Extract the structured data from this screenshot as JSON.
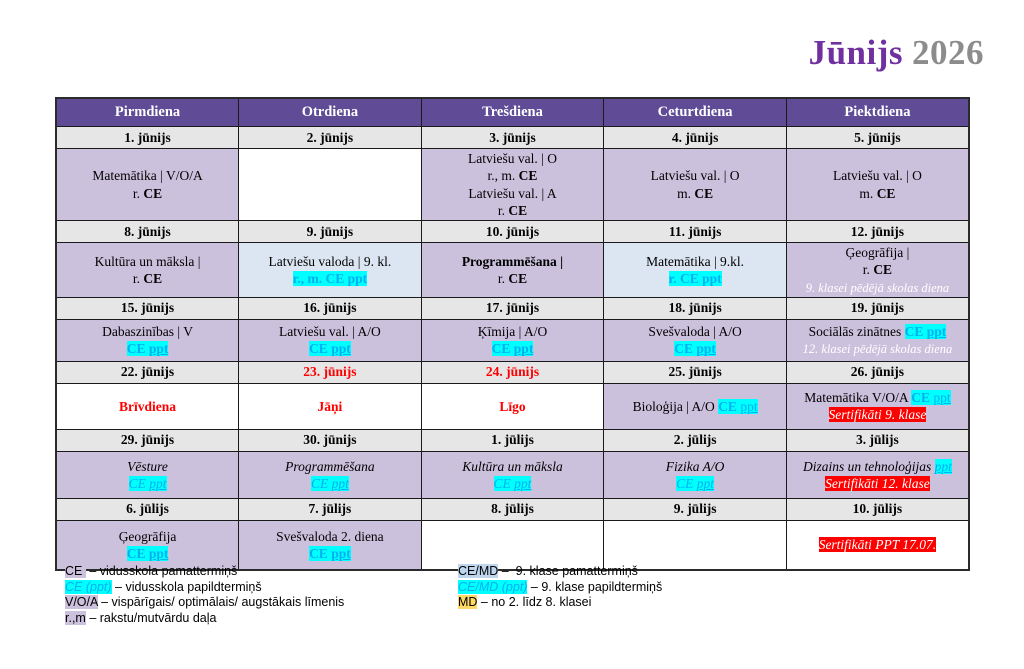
{
  "title": {
    "month": "Jūnijs",
    "year": "2026"
  },
  "colors": {
    "title_purple": "#7030A0",
    "title_gray": "#8C8C8C",
    "header_bg": "#5F4B96",
    "date_bg": "#E7E6E6",
    "lavender": "#CCC1DD",
    "light_blue": "#DCE6F2",
    "legend_blue": "#BDD6EE",
    "cyan": "#00FFFF",
    "blue_text": "#00B0F0",
    "red": "#FF0000",
    "yellow": "#FFD966"
  },
  "calendar": {
    "headers": [
      "Pirmdiena",
      "Otrdiena",
      "Trešdiena",
      "Ceturtdiena",
      "Piektdiena"
    ],
    "weeks": [
      {
        "dates": [
          {
            "label": "1. jūnijs"
          },
          {
            "label": "2. jūnijs"
          },
          {
            "label": "3. jūnijs"
          },
          {
            "label": "4. jūnijs"
          },
          {
            "label": "5. jūnijs"
          }
        ],
        "cells": [
          {
            "bg": "lav",
            "lines": [
              [
                {
                  "t": "Matemātika | V/O/A"
                }
              ],
              [
                {
                  "t": "r. "
                },
                {
                  "t": "CE",
                  "b": 1
                }
              ]
            ]
          },
          {
            "bg": "white",
            "lines": []
          },
          {
            "bg": "lav",
            "lines": [
              [
                {
                  "t": "Latviešu val. | O"
                }
              ],
              [
                {
                  "t": "r., m. "
                },
                {
                  "t": "CE",
                  "b": 1
                }
              ],
              [
                {
                  "t": "Latviešu val. | A"
                }
              ],
              [
                {
                  "t": "r. "
                },
                {
                  "t": "CE",
                  "b": 1
                }
              ]
            ]
          },
          {
            "bg": "lav",
            "lines": [
              [
                {
                  "t": "Latviešu val. | O"
                }
              ],
              [
                {
                  "t": "m. "
                },
                {
                  "t": "CE",
                  "b": 1
                }
              ]
            ]
          },
          {
            "bg": "lav",
            "lines": [
              [
                {
                  "t": "Latviešu val. | O"
                }
              ],
              [
                {
                  "t": "m. "
                },
                {
                  "t": "CE",
                  "b": 1
                }
              ]
            ]
          }
        ]
      },
      {
        "dates": [
          {
            "label": "8. jūnijs"
          },
          {
            "label": "9. jūnijs"
          },
          {
            "label": "10. jūnijs"
          },
          {
            "label": "11. jūnijs"
          },
          {
            "label": "12. jūnijs"
          }
        ],
        "cells": [
          {
            "bg": "lav",
            "lines": [
              [
                {
                  "t": "Kultūra un māksla |"
                }
              ],
              [
                {
                  "t": "r. "
                },
                {
                  "t": "CE",
                  "b": 1
                }
              ]
            ]
          },
          {
            "bg": "blue",
            "lines": [
              [
                {
                  "t": "Latviešu valoda | 9. kl."
                }
              ],
              [
                {
                  "t": "r., m. CE ppt",
                  "b": 1,
                  "c": "blue",
                  "hl": "cyan"
                }
              ]
            ]
          },
          {
            "bg": "lav",
            "lines": [
              [
                {
                  "t": "Programmēšana |",
                  "b": 1
                }
              ],
              [
                {
                  "t": "r. "
                },
                {
                  "t": "CE",
                  "b": 1
                }
              ]
            ]
          },
          {
            "bg": "blue",
            "lines": [
              [
                {
                  "t": "Matemātika | 9.kl."
                }
              ],
              [
                {
                  "t": "r. CE ppt",
                  "b": 1,
                  "c": "blue",
                  "hl": "cyan"
                }
              ]
            ]
          },
          {
            "bg": "lav",
            "lines": [
              [
                {
                  "t": "Ģeogrāfija |"
                }
              ],
              [
                {
                  "t": "r. "
                },
                {
                  "t": "CE",
                  "b": 1
                }
              ],
              [
                {
                  "t": "9. klasei pēdējā skolas diena",
                  "i": 1,
                  "c": "white",
                  "s": 1
                }
              ]
            ]
          }
        ]
      },
      {
        "dates": [
          {
            "label": "15. jūnijs"
          },
          {
            "label": "16. jūnijs"
          },
          {
            "label": "17. jūnijs"
          },
          {
            "label": "18. jūnijs"
          },
          {
            "label": "19. jūnijs"
          }
        ],
        "cells": [
          {
            "bg": "lav",
            "lines": [
              [
                {
                  "t": "Dabaszinības | V"
                }
              ],
              [
                {
                  "t": "CE ",
                  "b": 1,
                  "c": "blue",
                  "hl": "cyan"
                },
                {
                  "t": "ppt",
                  "b": 1,
                  "c": "blue",
                  "hl": "cyan",
                  "u": 1
                }
              ]
            ]
          },
          {
            "bg": "lav",
            "lines": [
              [
                {
                  "t": "Latviešu val. | A/O"
                }
              ],
              [
                {
                  "t": "CE ",
                  "b": 1,
                  "c": "blue",
                  "hl": "cyan"
                },
                {
                  "t": "ppt",
                  "b": 1,
                  "c": "blue",
                  "hl": "cyan",
                  "u": 1
                }
              ]
            ]
          },
          {
            "bg": "lav",
            "lines": [
              [
                {
                  "t": "Ķīmija | A/O"
                }
              ],
              [
                {
                  "t": "CE ",
                  "b": 1,
                  "c": "blue",
                  "hl": "cyan"
                },
                {
                  "t": "ppt",
                  "b": 1,
                  "c": "blue",
                  "hl": "cyan",
                  "u": 1
                }
              ]
            ]
          },
          {
            "bg": "lav",
            "lines": [
              [
                {
                  "t": "Svešvaloda | A/O"
                }
              ],
              [
                {
                  "t": "CE ",
                  "b": 1,
                  "c": "blue",
                  "hl": "cyan"
                },
                {
                  "t": "ppt",
                  "b": 1,
                  "c": "blue",
                  "hl": "cyan",
                  "u": 1
                }
              ]
            ]
          },
          {
            "bg": "lav",
            "lines": [
              [
                {
                  "t": "Sociālās zinātnes "
                },
                {
                  "t": "CE ",
                  "b": 1,
                  "c": "blue",
                  "hl": "cyan"
                },
                {
                  "t": "ppt",
                  "b": 1,
                  "c": "blue",
                  "hl": "cyan",
                  "u": 1
                }
              ],
              [
                {
                  "t": "12. klasei pēdējā skolas diena",
                  "i": 1,
                  "c": "white",
                  "s": 1
                }
              ]
            ]
          }
        ]
      },
      {
        "dates": [
          {
            "label": "22. jūnijs"
          },
          {
            "label": "23. jūnijs",
            "red": true
          },
          {
            "label": "24. jūnijs",
            "red": true
          },
          {
            "label": "25. jūnijs"
          },
          {
            "label": "26. jūnijs"
          }
        ],
        "cells": [
          {
            "bg": "white",
            "lines": [
              [
                {
                  "t": "Brīvdiena",
                  "b": 1,
                  "c": "red"
                }
              ]
            ]
          },
          {
            "bg": "white",
            "lines": [
              [
                {
                  "t": "Jāņi",
                  "b": 1,
                  "c": "red"
                }
              ]
            ]
          },
          {
            "bg": "white",
            "lines": [
              [
                {
                  "t": "Līgo",
                  "b": 1,
                  "c": "red"
                }
              ]
            ]
          },
          {
            "bg": "lav",
            "lines": [
              [
                {
                  "t": "Bioloģija | A/O "
                },
                {
                  "t": "CE ",
                  "b": 1,
                  "c": "blue",
                  "hl": "cyan"
                },
                {
                  "t": "ppt",
                  "c": "blue",
                  "hl": "cyan",
                  "u": 1
                }
              ]
            ]
          },
          {
            "bg": "lav",
            "lines": [
              [
                {
                  "t": "Matemātika V/O/A "
                },
                {
                  "t": "CE ",
                  "b": 1,
                  "c": "blue",
                  "hl": "cyan"
                },
                {
                  "t": "ppt",
                  "c": "blue",
                  "hl": "cyan",
                  "u": 1
                }
              ],
              [
                {
                  "t": "Sertifikāti 9. klase",
                  "i": 1,
                  "c": "white",
                  "hl": "red"
                }
              ]
            ]
          }
        ]
      },
      {
        "dates": [
          {
            "label": "29. jūnijs"
          },
          {
            "label": "30. jūnijs"
          },
          {
            "label": "1. jūlijs"
          },
          {
            "label": "2. jūlijs"
          },
          {
            "label": "3. jūlijs"
          }
        ],
        "cells": [
          {
            "bg": "lav",
            "lines": [
              [
                {
                  "t": "Vēsture",
                  "i": 1
                }
              ],
              [
                {
                  "t": "CE ",
                  "i": 1,
                  "c": "blue",
                  "hl": "cyan"
                },
                {
                  "t": "ppt",
                  "i": 1,
                  "c": "blue",
                  "hl": "cyan",
                  "u": 1
                }
              ]
            ]
          },
          {
            "bg": "lav",
            "lines": [
              [
                {
                  "t": "Programmēšana",
                  "i": 1
                }
              ],
              [
                {
                  "t": "CE ",
                  "i": 1,
                  "c": "blue",
                  "hl": "cyan"
                },
                {
                  "t": "ppt",
                  "i": 1,
                  "c": "blue",
                  "hl": "cyan",
                  "u": 1
                }
              ]
            ]
          },
          {
            "bg": "lav",
            "lines": [
              [
                {
                  "t": "Kultūra un māksla",
                  "i": 1
                }
              ],
              [
                {
                  "t": "CE ",
                  "i": 1,
                  "c": "blue",
                  "hl": "cyan"
                },
                {
                  "t": "ppt",
                  "i": 1,
                  "c": "blue",
                  "hl": "cyan",
                  "u": 1
                }
              ]
            ]
          },
          {
            "bg": "lav",
            "lines": [
              [
                {
                  "t": "Fizika A/O",
                  "i": 1
                }
              ],
              [
                {
                  "t": "CE ",
                  "i": 1,
                  "c": "blue",
                  "hl": "cyan"
                },
                {
                  "t": "ppt",
                  "i": 1,
                  "c": "blue",
                  "hl": "cyan",
                  "u": 1
                }
              ]
            ]
          },
          {
            "bg": "lav",
            "lines": [
              [
                {
                  "t": "Dizains un tehnoloģijas ",
                  "i": 1
                },
                {
                  "t": "ppt",
                  "i": 1,
                  "c": "blue",
                  "hl": "cyan",
                  "u": 1
                }
              ],
              [
                {
                  "t": "Sertifikāti 12. klase",
                  "i": 1,
                  "c": "white",
                  "hl": "red"
                }
              ]
            ]
          }
        ]
      },
      {
        "dates": [
          {
            "label": "6. jūlijs"
          },
          {
            "label": "7. jūlijs"
          },
          {
            "label": "8. jūlijs"
          },
          {
            "label": "9. jūlijs"
          },
          {
            "label": "10. jūlijs"
          }
        ],
        "cells": [
          {
            "bg": "lav",
            "lines": [
              [
                {
                  "t": "Ģeogrāfija"
                }
              ],
              [
                {
                  "t": "CE ",
                  "b": 1,
                  "c": "blue",
                  "hl": "cyan"
                },
                {
                  "t": "ppt",
                  "b": 1,
                  "c": "blue",
                  "hl": "cyan",
                  "u": 1
                }
              ]
            ]
          },
          {
            "bg": "lav",
            "lines": [
              [
                {
                  "t": "Svešvaloda 2. diena"
                }
              ],
              [
                {
                  "t": "CE ",
                  "b": 1,
                  "c": "blue",
                  "hl": "cyan"
                },
                {
                  "t": "ppt",
                  "b": 1,
                  "c": "blue",
                  "hl": "cyan",
                  "u": 1
                }
              ]
            ]
          },
          {
            "bg": "white",
            "lines": []
          },
          {
            "bg": "white",
            "lines": []
          },
          {
            "bg": "white",
            "lines": [
              [
                {
                  "t": "Sertifikāti PPT 17.07.",
                  "i": 1,
                  "c": "white",
                  "hl": "red"
                }
              ]
            ]
          }
        ]
      }
    ]
  },
  "legend": {
    "left": [
      [
        {
          "t": "CE ",
          "hl": "lav"
        },
        {
          "t": " – vidusskola pamattermiņš"
        }
      ],
      [
        {
          "t": "CE (ppt)",
          "i": 1,
          "c": "blue",
          "hl": "cyan"
        },
        {
          "t": " – vidusskola papildtermiņš"
        }
      ],
      [
        {
          "t": "V/O/A",
          "hl": "lav"
        },
        {
          "t": " – vispārīgais/ optimālais/ augstākais līmenis"
        }
      ],
      [
        {
          "t": "r.,m",
          "hl": "lav"
        },
        {
          "t": " – rakstu/mutvārdu daļa"
        }
      ]
    ],
    "right": [
      [
        {
          "t": "CE/MD",
          "hl": "lblue"
        },
        {
          "t": " –  9. klase pamattermiņš"
        }
      ],
      [
        {
          "t": "CE/MD (ppt)",
          "i": 1,
          "c": "blue",
          "hl": "cyan"
        },
        {
          "t": " – 9. klase papildtermiņš"
        }
      ],
      [
        {
          "t": "MD",
          "hl": "yellow"
        },
        {
          "t": " – no 2. līdz 8. klasei"
        }
      ]
    ]
  }
}
